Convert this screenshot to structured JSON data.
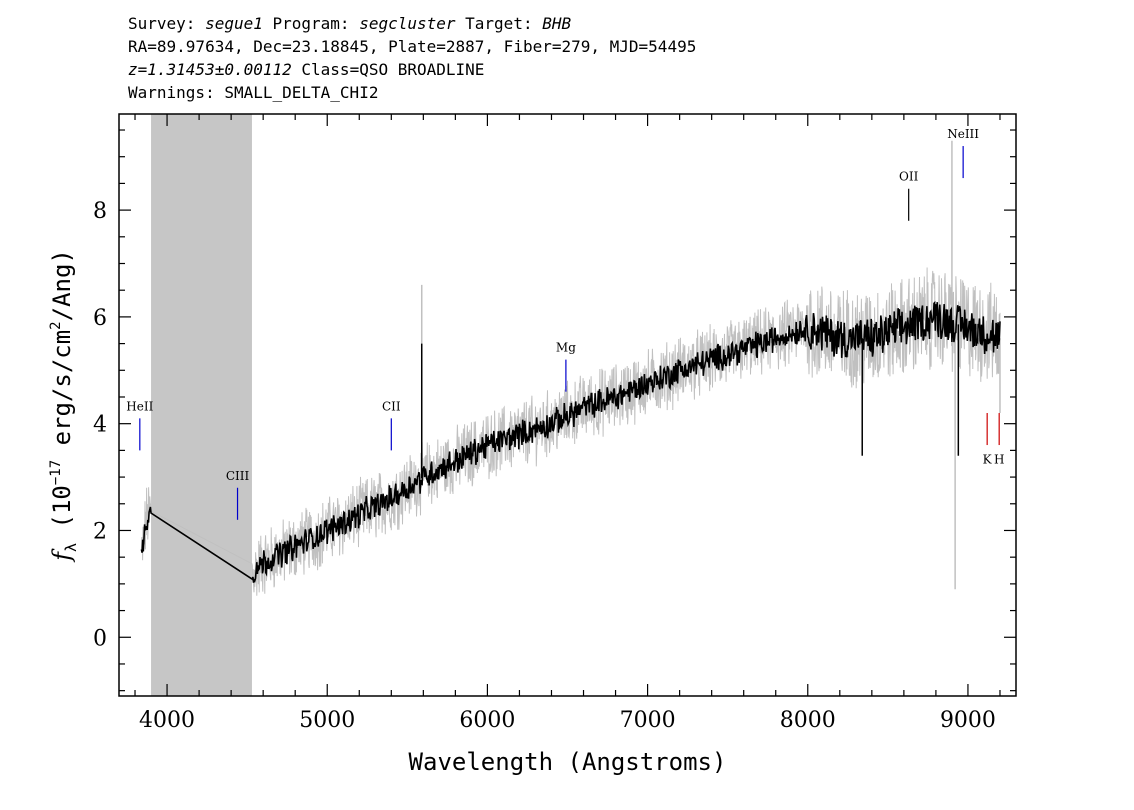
{
  "header": {
    "line1": {
      "survey_label": "Survey: ",
      "survey": "segue1",
      "program_label": " Program: ",
      "program": "segcluster",
      "target_label": " Target: ",
      "target": "BHB"
    },
    "line2": "RA=89.97634, Dec=23.18845, Plate=2887, Fiber=279, MJD=54495",
    "line3": {
      "z": "z=1.31453±0.00112",
      "class": " Class=QSO BROADLINE"
    },
    "line4": "Warnings: SMALL_DELTA_CHI2"
  },
  "chart_data": {
    "type": "line",
    "xlabel": "Wavelength (Angstroms)",
    "ylabel": "f_λ (10^-17 erg/s/cm^2/Ang)",
    "ylabel_parts": {
      "f": "f",
      "lambda": "λ",
      "open": " (10",
      "exp1": "−17",
      "mid": " erg/s/cm",
      "exp2": "2",
      "close": "/Ang)"
    },
    "xlim": [
      3700,
      9300
    ],
    "ylim": [
      -1.1,
      9.8
    ],
    "xticks": [
      4000,
      5000,
      6000,
      7000,
      8000,
      9000
    ],
    "yticks": [
      0,
      2,
      4,
      6,
      8
    ],
    "masked_region": [
      3900,
      4530
    ],
    "grid": false,
    "legend": "none",
    "series": [
      {
        "role": "flux",
        "color": "#c0c0c0",
        "x": [
          3840,
          3870,
          3900,
          4530,
          4600,
          4800,
          5000,
          5200,
          5400,
          5600,
          5800,
          6000,
          6200,
          6400,
          6600,
          6800,
          7000,
          7200,
          7400,
          7600,
          7800,
          8000,
          8200,
          8400,
          8600,
          8800,
          9000,
          9200
        ],
        "y": [
          1.5,
          2.2,
          2.4,
          1.2,
          1.4,
          1.7,
          2.0,
          2.3,
          2.6,
          3.0,
          3.3,
          3.6,
          3.8,
          4.0,
          4.3,
          4.5,
          4.75,
          5.0,
          5.2,
          5.4,
          5.6,
          5.8,
          5.6,
          5.6,
          5.8,
          6.0,
          5.8,
          5.6
        ]
      },
      {
        "role": "model",
        "color": "#000000",
        "x": [
          3840,
          3870,
          3900,
          4530,
          4600,
          4800,
          5000,
          5200,
          5400,
          5600,
          5800,
          6000,
          6200,
          6400,
          6600,
          6800,
          7000,
          7200,
          7400,
          7600,
          7800,
          8000,
          8200,
          8400,
          8600,
          8800,
          9000,
          9200
        ],
        "y": [
          1.5,
          2.2,
          2.4,
          1.2,
          1.4,
          1.7,
          2.0,
          2.3,
          2.6,
          3.0,
          3.3,
          3.6,
          3.8,
          4.0,
          4.3,
          4.5,
          4.75,
          5.0,
          5.2,
          5.4,
          5.6,
          5.8,
          5.6,
          5.6,
          5.8,
          6.0,
          5.8,
          5.6
        ]
      }
    ],
    "spikes": [
      {
        "x": 5590,
        "y": 5.5,
        "color": "#000000"
      },
      {
        "x": 5590,
        "y": 6.6,
        "color": "#c0c0c0"
      },
      {
        "x": 8340,
        "y": 3.4,
        "color": "#000000"
      },
      {
        "x": 8920,
        "y": 0.9,
        "color": "#c0c0c0"
      },
      {
        "x": 8940,
        "y": 3.4,
        "color": "#000000"
      },
      {
        "x": 8900,
        "y": 9.3,
        "color": "#c0c0c0"
      },
      {
        "x": 9200,
        "y": 4.2,
        "color": "#c0c0c0"
      }
    ],
    "annotations": [
      {
        "label": "HeII",
        "x": 3830,
        "y1": 3.5,
        "y2": 4.1,
        "label_y": 4.25,
        "color": "#0000cc",
        "label_color": "#000000"
      },
      {
        "label": "CIII",
        "x": 4440,
        "y1": 2.2,
        "y2": 2.8,
        "label_y": 2.95,
        "color": "#0000cc",
        "label_color": "#555555"
      },
      {
        "label": "CII",
        "x": 5400,
        "y1": 3.5,
        "y2": 4.1,
        "label_y": 4.25,
        "color": "#0000cc",
        "label_color": "#000000"
      },
      {
        "label": "Mg",
        "x": 6490,
        "y1": 4.6,
        "y2": 5.2,
        "label_y": 5.35,
        "color": "#0000cc",
        "label_color": "#000000"
      },
      {
        "label": "OII",
        "x": 8630,
        "y1": 7.8,
        "y2": 8.4,
        "label_y": 8.55,
        "color": "#000000",
        "label_color": "#000000"
      },
      {
        "label": "NeIII",
        "x": 8970,
        "y1": 8.6,
        "y2": 9.2,
        "label_y": 9.35,
        "color": "#0000cc",
        "label_color": "#000000"
      },
      {
        "label": "K",
        "x": 9120,
        "y1": 3.6,
        "y2": 4.2,
        "label_y": 3.25,
        "color": "#cc0000",
        "label_color": "#000000"
      },
      {
        "label": "H",
        "x": 9195,
        "y1": 3.6,
        "y2": 4.2,
        "label_y": 3.25,
        "color": "#cc0000",
        "label_color": "#000000"
      }
    ]
  }
}
